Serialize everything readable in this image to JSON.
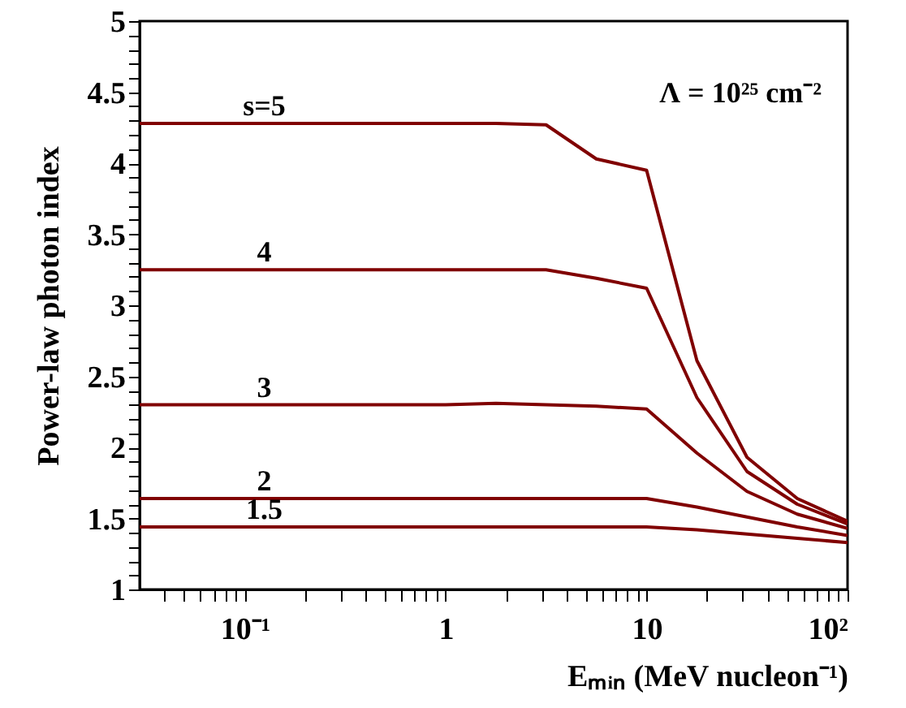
{
  "chart_data": {
    "type": "line",
    "xlabel": "Eₘᵢₙ (MeV nucleon⁻¹)",
    "ylabel": "Power-law photon index",
    "annotations": [
      "Λ = 10²⁵ cm⁻²"
    ],
    "x": [
      0.03,
      0.056,
      0.1,
      0.178,
      0.316,
      0.562,
      1,
      1.78,
      3.16,
      5.62,
      10,
      17.8,
      31.6,
      56.2,
      100
    ],
    "series": [
      {
        "name": "s=5",
        "color": "#800000",
        "values": [
          4.28,
          4.28,
          4.28,
          4.28,
          4.28,
          4.28,
          4.28,
          4.28,
          4.27,
          4.03,
          3.95,
          2.61,
          1.93,
          1.64,
          1.48
        ]
      },
      {
        "name": "4",
        "color": "#800000",
        "values": [
          3.25,
          3.25,
          3.25,
          3.25,
          3.25,
          3.25,
          3.25,
          3.25,
          3.25,
          3.19,
          3.12,
          2.35,
          1.83,
          1.6,
          1.46
        ]
      },
      {
        "name": "3",
        "color": "#800000",
        "values": [
          2.3,
          2.3,
          2.3,
          2.3,
          2.3,
          2.3,
          2.3,
          2.31,
          2.3,
          2.29,
          2.27,
          1.96,
          1.69,
          1.53,
          1.43
        ]
      },
      {
        "name": "2",
        "color": "#800000",
        "values": [
          1.64,
          1.64,
          1.64,
          1.64,
          1.64,
          1.64,
          1.64,
          1.64,
          1.64,
          1.64,
          1.64,
          1.58,
          1.51,
          1.44,
          1.38
        ]
      },
      {
        "name": "1.5",
        "color": "#800000",
        "values": [
          1.44,
          1.44,
          1.44,
          1.44,
          1.44,
          1.44,
          1.44,
          1.44,
          1.44,
          1.44,
          1.44,
          1.42,
          1.39,
          1.36,
          1.33
        ]
      }
    ],
    "log": "x",
    "xlim": [
      0.03,
      100
    ],
    "xticks": [
      {
        "value": 0.04,
        "label": null
      },
      {
        "value": 0.05,
        "label": null
      },
      {
        "value": 0.06,
        "label": null
      },
      {
        "value": 0.07,
        "label": null
      },
      {
        "value": 0.08,
        "label": null
      },
      {
        "value": 0.09,
        "label": null
      },
      {
        "value": 0.1,
        "label": "10⁻¹"
      },
      {
        "value": 0.2,
        "label": null
      },
      {
        "value": 0.3,
        "label": null
      },
      {
        "value": 0.4,
        "label": null
      },
      {
        "value": 0.5,
        "label": null
      },
      {
        "value": 0.6,
        "label": null
      },
      {
        "value": 0.7,
        "label": null
      },
      {
        "value": 0.8,
        "label": null
      },
      {
        "value": 0.9,
        "label": null
      },
      1,
      {
        "value": 2,
        "label": null
      },
      {
        "value": 3,
        "label": null
      },
      {
        "value": 4,
        "label": null
      },
      {
        "value": 5,
        "label": null
      },
      {
        "value": 6,
        "label": null
      },
      {
        "value": 7,
        "label": null
      },
      {
        "value": 8,
        "label": null
      },
      {
        "value": 9,
        "label": null
      },
      10,
      {
        "value": 20,
        "label": null
      },
      {
        "value": 30,
        "label": null
      },
      {
        "value": 40,
        "label": null
      },
      {
        "value": 50,
        "label": null
      },
      {
        "value": 60,
        "label": null
      },
      {
        "value": 70,
        "label": null
      },
      {
        "value": 80,
        "label": null
      },
      {
        "value": 90,
        "label": null
      },
      {
        "value": 100,
        "label": "10²"
      }
    ],
    "ylim": [
      1,
      5
    ],
    "yticks": [
      1,
      {
        "value": 1.1,
        "label": null
      },
      {
        "value": 1.2,
        "label": null
      },
      {
        "value": 1.3,
        "label": null
      },
      {
        "value": 1.4,
        "label": null
      },
      1.5,
      {
        "value": 1.6,
        "label": null
      },
      {
        "value": 1.7,
        "label": null
      },
      {
        "value": 1.8,
        "label": null
      },
      {
        "value": 1.9,
        "label": null
      },
      2,
      {
        "value": 2.1,
        "label": null
      },
      {
        "value": 2.2,
        "label": null
      },
      {
        "value": 2.3,
        "label": null
      },
      {
        "value": 2.4,
        "label": null
      },
      2.5,
      {
        "value": 2.6,
        "label": null
      },
      {
        "value": 2.7,
        "label": null
      },
      {
        "value": 2.8,
        "label": null
      },
      {
        "value": 2.9,
        "label": null
      },
      3,
      {
        "value": 3.1,
        "label": null
      },
      {
        "value": 3.2,
        "label": null
      },
      {
        "value": 3.3,
        "label": null
      },
      {
        "value": 3.4,
        "label": null
      },
      3.5,
      {
        "value": 3.6,
        "label": null
      },
      {
        "value": 3.7,
        "label": null
      },
      {
        "value": 3.8,
        "label": null
      },
      {
        "value": 3.9,
        "label": null
      },
      4,
      {
        "value": 4.1,
        "label": null
      },
      {
        "value": 4.2,
        "label": null
      },
      {
        "value": 4.3,
        "label": null
      },
      {
        "value": 4.4,
        "label": null
      },
      4.5,
      {
        "value": 4.6,
        "label": null
      },
      {
        "value": 4.7,
        "label": null
      },
      {
        "value": 4.8,
        "label": null
      },
      {
        "value": 4.9,
        "label": null
      },
      5
    ],
    "grid": false,
    "marker": "none",
    "line_style": "solid"
  }
}
